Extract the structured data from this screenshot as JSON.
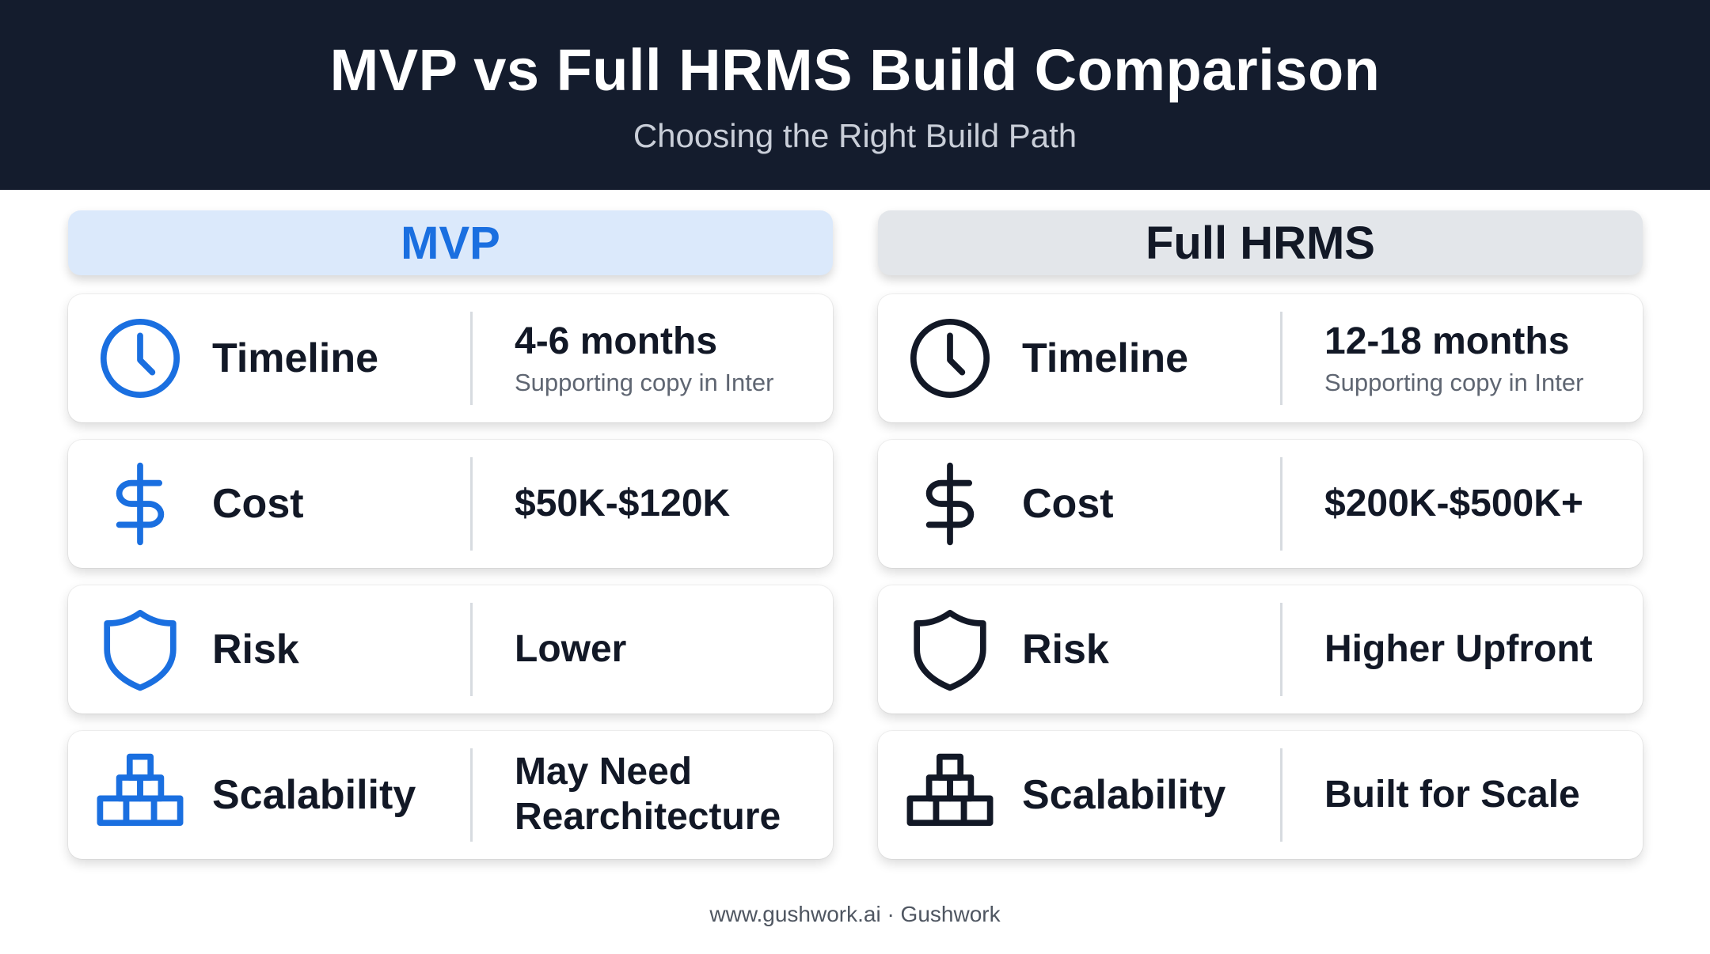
{
  "header": {
    "title": "MVP vs Full HRMS Build Comparison",
    "subtitle": "Choosing the Right Build Path"
  },
  "colors": {
    "header_bg": "#141c2d",
    "mvp_accent": "#1a6fe0",
    "mvp_header_bg": "#dbe9fb",
    "full_accent": "#121826",
    "full_header_bg": "#e3e6ea"
  },
  "columns": [
    {
      "title": "MVP",
      "rows": [
        {
          "icon": "clock-icon",
          "label": "Timeline",
          "value": "4-6 months",
          "sub": "Supporting copy in Inter"
        },
        {
          "icon": "dollar-icon",
          "label": "Cost",
          "value": "$50K-$120K"
        },
        {
          "icon": "shield-icon",
          "label": "Risk",
          "value": "Lower"
        },
        {
          "icon": "blocks-icon",
          "label": "Scalability",
          "value": "May Need Rearchitecture"
        }
      ]
    },
    {
      "title": "Full HRMS",
      "rows": [
        {
          "icon": "clock-icon",
          "label": "Timeline",
          "value": "12-18 months",
          "sub": "Supporting copy in Inter"
        },
        {
          "icon": "dollar-icon",
          "label": "Cost",
          "value": "$200K-$500K+"
        },
        {
          "icon": "shield-icon",
          "label": "Risk",
          "value": "Higher Upfront"
        },
        {
          "icon": "blocks-icon",
          "label": "Scalability",
          "value": "Built for Scale"
        }
      ]
    }
  ],
  "footer": "www.gushwork.ai · Gushwork"
}
